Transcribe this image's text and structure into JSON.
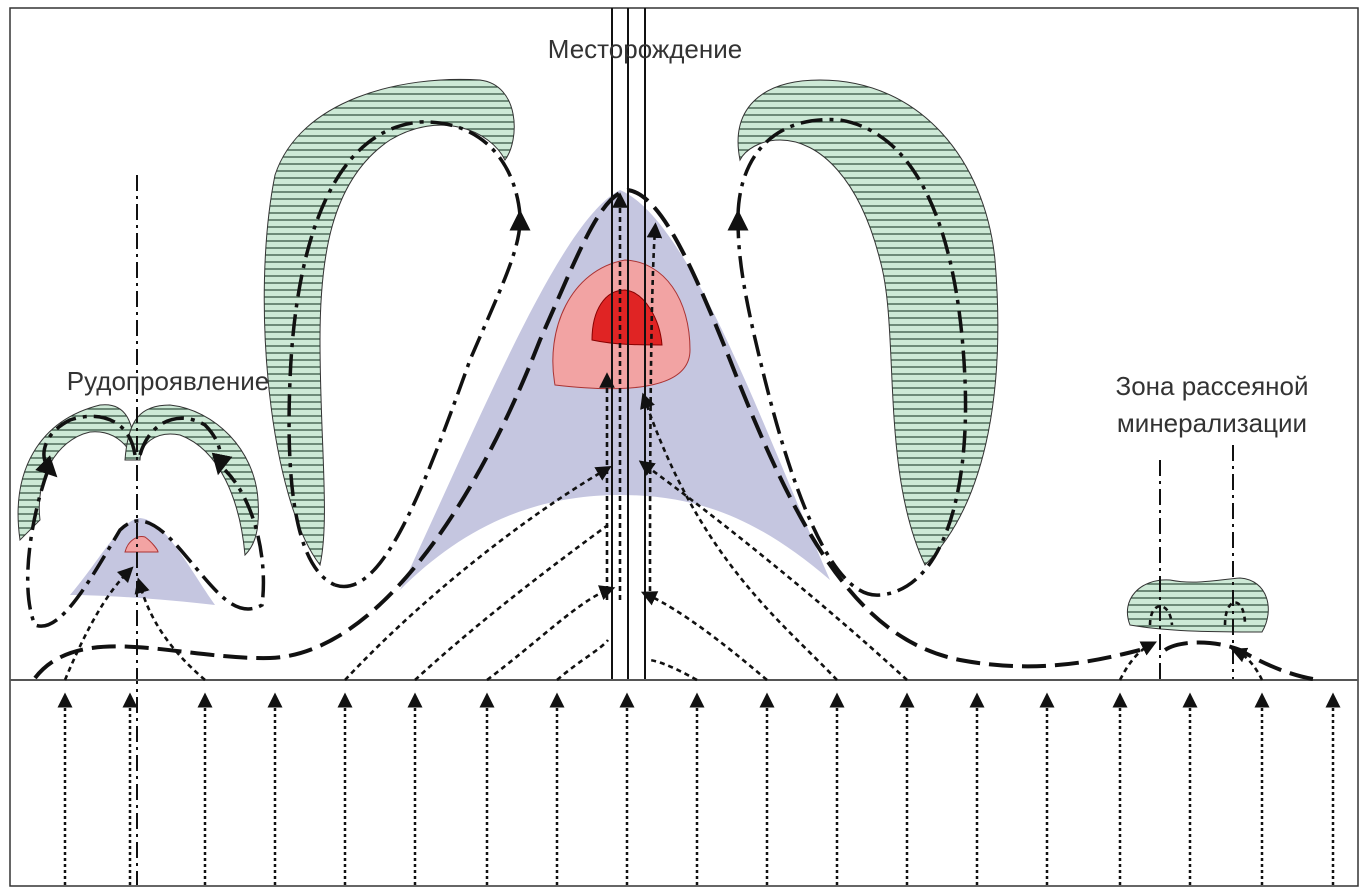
{
  "labels": {
    "deposit": "Месторождение",
    "ore_occurrence": "Рудопроявление",
    "dispersed_zone": [
      "Зона рассеяной",
      "минерализации"
    ]
  }
}
